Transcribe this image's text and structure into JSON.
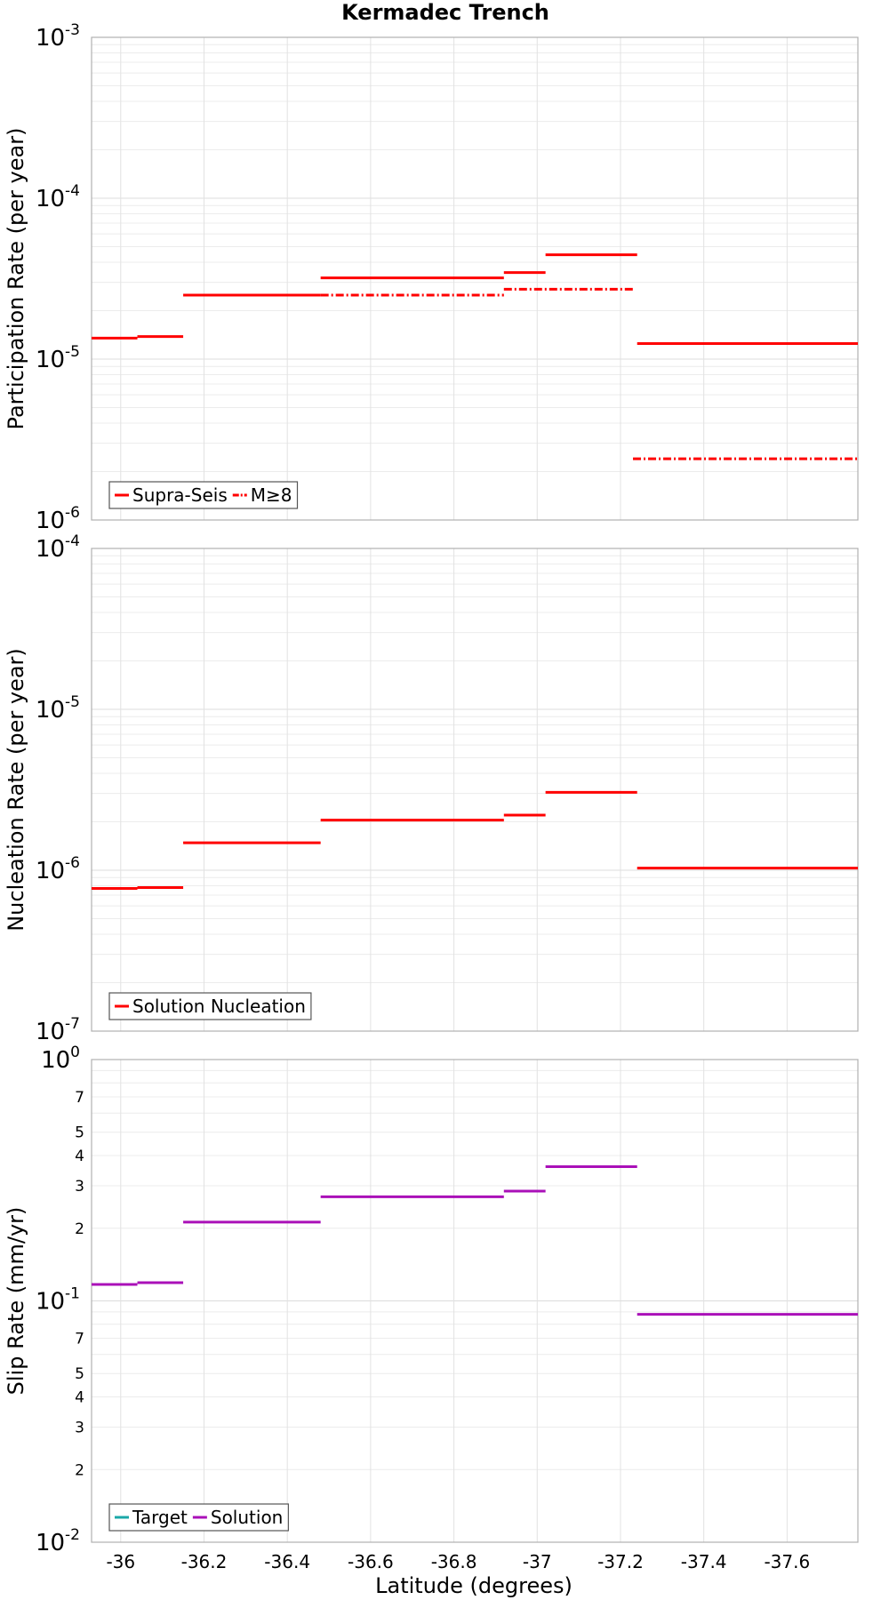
{
  "chart_data": {
    "type": "line",
    "title": "Kermadec Trench",
    "xlabel": "Latitude (degrees)",
    "xlim": [
      -35.93,
      -37.77
    ],
    "xticks": [
      -36,
      -36.2,
      -36.4,
      -36.6,
      -36.8,
      -37,
      -37.2,
      -37.4,
      -37.6
    ],
    "xtick_labels": [
      "-36",
      "-36.2",
      "-36.4",
      "-36.6",
      "-36.8",
      "-37",
      "-37.2",
      "-37.4",
      "-37.6"
    ],
    "panels": [
      {
        "id": "participation",
        "ylabel": "Participation Rate (per year)",
        "scale": "log",
        "ylim_exp": [
          -6,
          -3
        ],
        "major_exps": [
          -3,
          -4,
          -5,
          -6
        ],
        "minor_labels": false,
        "series": [
          {
            "name": "Supra-Seis",
            "color": "#ff0000",
            "dash": "solid",
            "segments": [
              {
                "x0": -35.93,
                "x1": -36.04,
                "y": 1.35e-05
              },
              {
                "x0": -36.04,
                "x1": -36.15,
                "y": 1.38e-05
              },
              {
                "x0": -36.15,
                "x1": -36.48,
                "y": 2.5e-05
              },
              {
                "x0": -36.48,
                "x1": -36.92,
                "y": 3.2e-05
              },
              {
                "x0": -36.92,
                "x1": -37.02,
                "y": 3.45e-05
              },
              {
                "x0": -37.02,
                "x1": -37.24,
                "y": 4.45e-05
              },
              {
                "x0": -37.24,
                "x1": -37.77,
                "y": 1.25e-05
              }
            ]
          },
          {
            "name": "M≥8",
            "color": "#ff0000",
            "dash": "dashdot",
            "segments": [
              {
                "x0": -36.48,
                "x1": -36.92,
                "y": 2.5e-05
              },
              {
                "x0": -36.92,
                "x1": -37.23,
                "y": 2.72e-05
              },
              {
                "x0": -37.23,
                "x1": -37.77,
                "y": 2.4e-06
              }
            ]
          }
        ],
        "legend": [
          "Supra-Seis",
          "M≥8"
        ]
      },
      {
        "id": "nucleation",
        "ylabel": "Nucleation Rate (per year)",
        "scale": "log",
        "ylim_exp": [
          -7,
          -4
        ],
        "major_exps": [
          -4,
          -5,
          -6,
          -7
        ],
        "minor_labels": false,
        "series": [
          {
            "name": "Solution Nucleation",
            "color": "#ff0000",
            "dash": "solid",
            "segments": [
              {
                "x0": -35.93,
                "x1": -36.04,
                "y": 7.7e-07
              },
              {
                "x0": -36.04,
                "x1": -36.15,
                "y": 7.8e-07
              },
              {
                "x0": -36.15,
                "x1": -36.48,
                "y": 1.48e-06
              },
              {
                "x0": -36.48,
                "x1": -36.92,
                "y": 2.05e-06
              },
              {
                "x0": -36.92,
                "x1": -37.02,
                "y": 2.2e-06
              },
              {
                "x0": -37.02,
                "x1": -37.24,
                "y": 3.05e-06
              },
              {
                "x0": -37.24,
                "x1": -37.77,
                "y": 1.03e-06
              }
            ]
          }
        ],
        "legend": [
          "Solution Nucleation"
        ]
      },
      {
        "id": "slip",
        "ylabel": "Slip Rate (mm/yr)",
        "scale": "log",
        "ylim_exp": [
          -2,
          0
        ],
        "major_exps": [
          0,
          -1,
          -2
        ],
        "minor_labels": true,
        "minor_label_values": [
          "7",
          "5",
          "4",
          "3",
          "2"
        ],
        "series": [
          {
            "name": "Target",
            "color": "#1aa8a8",
            "dash": "solid",
            "segments": []
          },
          {
            "name": "Solution",
            "color": "#aa10b8",
            "dash": "solid",
            "segments": [
              {
                "x0": -35.93,
                "x1": -36.04,
                "y": 0.117
              },
              {
                "x0": -36.04,
                "x1": -36.15,
                "y": 0.119
              },
              {
                "x0": -36.15,
                "x1": -36.48,
                "y": 0.212
              },
              {
                "x0": -36.48,
                "x1": -36.92,
                "y": 0.27
              },
              {
                "x0": -36.92,
                "x1": -37.02,
                "y": 0.285
              },
              {
                "x0": -37.02,
                "x1": -37.24,
                "y": 0.36
              },
              {
                "x0": -37.24,
                "x1": -37.77,
                "y": 0.088
              }
            ]
          }
        ],
        "legend": [
          "Target",
          "Solution"
        ]
      }
    ]
  }
}
